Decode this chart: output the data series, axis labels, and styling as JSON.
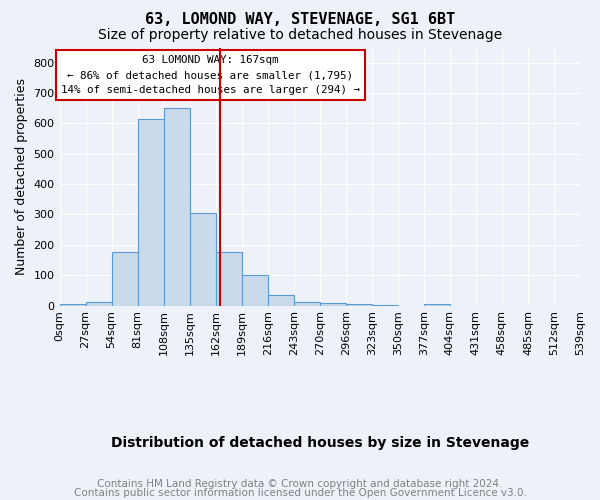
{
  "title": "63, LOMOND WAY, STEVENAGE, SG1 6BT",
  "subtitle": "Size of property relative to detached houses in Stevenage",
  "xlabel": "Distribution of detached houses by size in Stevenage",
  "ylabel": "Number of detached properties",
  "bin_labels": [
    "0sqm",
    "27sqm",
    "54sqm",
    "81sqm",
    "108sqm",
    "135sqm",
    "162sqm",
    "189sqm",
    "216sqm",
    "243sqm",
    "270sqm",
    "296sqm",
    "323sqm",
    "350sqm",
    "377sqm",
    "404sqm",
    "431sqm",
    "458sqm",
    "485sqm",
    "512sqm",
    "539sqm"
  ],
  "bar_values": [
    5,
    12,
    175,
    615,
    650,
    305,
    175,
    100,
    35,
    12,
    8,
    5,
    3,
    0,
    4,
    0,
    0,
    0,
    0,
    0
  ],
  "bar_color": "#c9daea",
  "bar_edge_color": "#5b9bd5",
  "marker_color": "#cc0000",
  "ylim": [
    0,
    850
  ],
  "yticks": [
    0,
    100,
    200,
    300,
    400,
    500,
    600,
    700,
    800
  ],
  "annotation_text": "63 LOMOND WAY: 167sqm\n← 86% of detached houses are smaller (1,795)\n14% of semi-detached houses are larger (294) →",
  "annotation_box_color": "#ffffff",
  "annotation_box_edge": "#cc0000",
  "footer1": "Contains HM Land Registry data © Crown copyright and database right 2024.",
  "footer2": "Contains public sector information licensed under the Open Government Licence v3.0.",
  "bg_color": "#eef2f8",
  "plot_bg_color": "#eef2f8",
  "title_fontsize": 11,
  "subtitle_fontsize": 10,
  "axis_label_fontsize": 9,
  "tick_fontsize": 8,
  "footer_fontsize": 7.5
}
